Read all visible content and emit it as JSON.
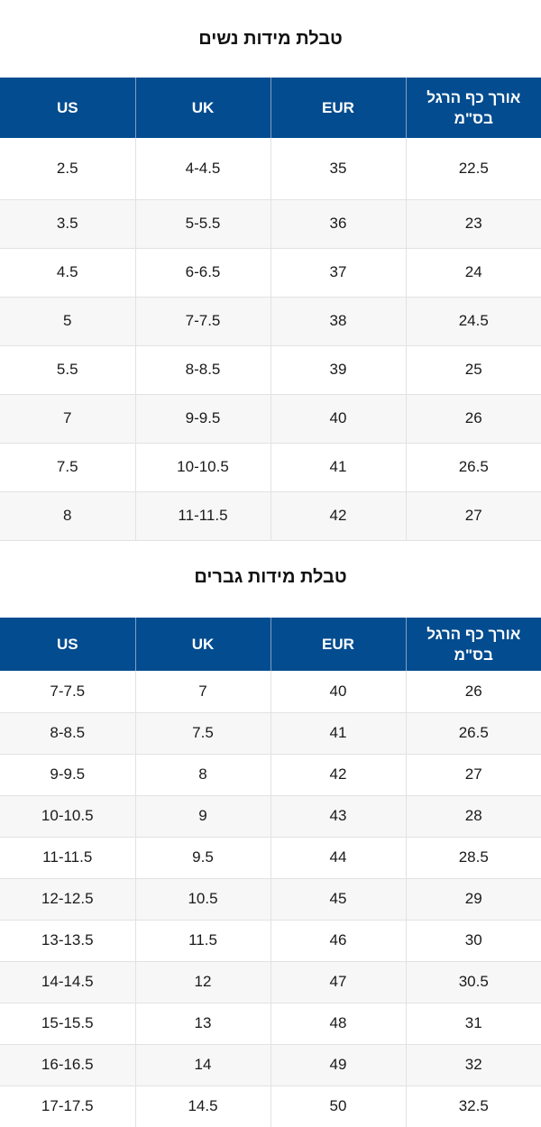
{
  "women": {
    "title": "טבלת מידות נשים",
    "headers": {
      "us": "US",
      "uk": "UK",
      "eur": "EUR",
      "cm": "אורך כף הרגל בס\"מ"
    },
    "rows": [
      {
        "us": "2.5",
        "uk": "4-4.5",
        "eur": "35",
        "cm": "22.5"
      },
      {
        "us": "3.5",
        "uk": "5-5.5",
        "eur": "36",
        "cm": "23"
      },
      {
        "us": "4.5",
        "uk": "6-6.5",
        "eur": "37",
        "cm": "24"
      },
      {
        "us": "5",
        "uk": "7-7.5",
        "eur": "38",
        "cm": "24.5"
      },
      {
        "us": "5.5",
        "uk": "8-8.5",
        "eur": "39",
        "cm": "25"
      },
      {
        "us": "7",
        "uk": "9-9.5",
        "eur": "40",
        "cm": "26"
      },
      {
        "us": "7.5",
        "uk": "10-10.5",
        "eur": "41",
        "cm": "26.5"
      },
      {
        "us": "8",
        "uk": "11-11.5",
        "eur": "42",
        "cm": "27"
      }
    ]
  },
  "men": {
    "title": "טבלת מידות גברים",
    "headers": {
      "us": "US",
      "uk": "UK",
      "eur": "EUR",
      "cm": "אורך כף הרגל בס\"מ"
    },
    "rows": [
      {
        "us": "7-7.5",
        "uk": "7",
        "eur": "40",
        "cm": "26"
      },
      {
        "us": "8-8.5",
        "uk": "7.5",
        "eur": "41",
        "cm": "26.5"
      },
      {
        "us": "9-9.5",
        "uk": "8",
        "eur": "42",
        "cm": "27"
      },
      {
        "us": "10-10.5",
        "uk": "9",
        "eur": "43",
        "cm": "28"
      },
      {
        "us": "11-11.5",
        "uk": "9.5",
        "eur": "44",
        "cm": "28.5"
      },
      {
        "us": "12-12.5",
        "uk": "10.5",
        "eur": "45",
        "cm": "29"
      },
      {
        "us": "13-13.5",
        "uk": "11.5",
        "eur": "46",
        "cm": "30"
      },
      {
        "us": "14-14.5",
        "uk": "12",
        "eur": "47",
        "cm": "30.5"
      },
      {
        "us": "15-15.5",
        "uk": "13",
        "eur": "48",
        "cm": "31"
      },
      {
        "us": "16-16.5",
        "uk": "14",
        "eur": "49",
        "cm": "32"
      },
      {
        "us": "17-17.5",
        "uk": "14.5",
        "eur": "50",
        "cm": "32.5"
      }
    ]
  },
  "colors": {
    "header_bg": "#024c8f",
    "header_text": "#ffffff",
    "alt_row_bg": "#f7f7f7",
    "border": "#e2e2e2"
  }
}
